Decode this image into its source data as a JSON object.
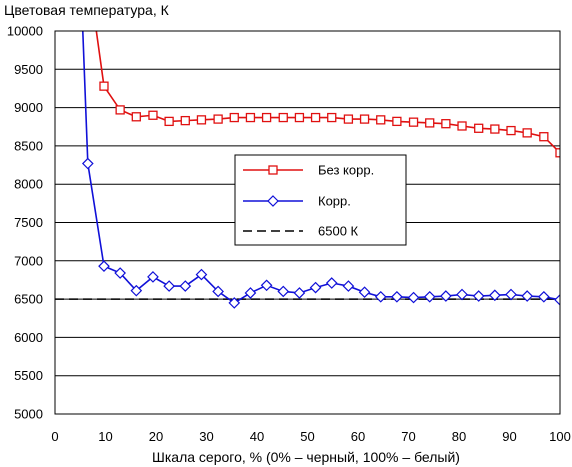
{
  "chart_data": {
    "type": "line",
    "title": "",
    "ylabel": "Цветовая температура, К",
    "xlabel": "Шкала серого, % (0% – черный, 100% – белый)",
    "xlim": [
      0,
      100
    ],
    "ylim": [
      5000,
      10000
    ],
    "xticks": [
      "0",
      "10",
      "20",
      "30",
      "40",
      "50",
      "60",
      "70",
      "80",
      "90",
      "100"
    ],
    "yticks": [
      "5000",
      "5500",
      "6000",
      "6500",
      "7000",
      "7500",
      "8000",
      "8500",
      "9000",
      "9500",
      "10000"
    ],
    "grid": "horizontal",
    "legend_position": "center-right",
    "series": [
      {
        "name": "Без корр.",
        "color": "#e01010",
        "marker": "square",
        "x": [
          6.5,
          9.7,
          12.9,
          16.1,
          19.4,
          22.6,
          25.8,
          29.0,
          32.3,
          35.5,
          38.7,
          41.9,
          45.2,
          48.4,
          51.6,
          54.8,
          58.1,
          61.3,
          64.5,
          67.7,
          71.0,
          74.2,
          77.4,
          80.6,
          83.9,
          87.1,
          90.3,
          93.5,
          96.8,
          100.0
        ],
        "y": [
          10800,
          9280,
          8970,
          8880,
          8900,
          8820,
          8830,
          8840,
          8850,
          8870,
          8870,
          8870,
          8870,
          8870,
          8870,
          8870,
          8850,
          8850,
          8840,
          8820,
          8810,
          8800,
          8790,
          8760,
          8730,
          8720,
          8700,
          8670,
          8620,
          8410
        ]
      },
      {
        "name": "Корр.",
        "color": "#1010d8",
        "marker": "diamond",
        "x": [
          3.2,
          6.5,
          9.7,
          12.9,
          16.1,
          19.4,
          22.6,
          25.8,
          29.0,
          32.3,
          35.5,
          38.7,
          41.9,
          45.2,
          48.4,
          51.6,
          54.8,
          58.1,
          61.3,
          64.5,
          67.7,
          71.0,
          74.2,
          77.4,
          80.6,
          83.9,
          87.1,
          90.3,
          93.5,
          96.8,
          100.0
        ],
        "y": [
          14000,
          8270,
          6930,
          6840,
          6610,
          6790,
          6670,
          6670,
          6820,
          6600,
          6450,
          6580,
          6680,
          6600,
          6580,
          6650,
          6710,
          6670,
          6590,
          6530,
          6530,
          6520,
          6530,
          6540,
          6560,
          6540,
          6550,
          6560,
          6540,
          6530,
          6490
        ]
      },
      {
        "name": "6500 К",
        "color": "#000000",
        "dash": "dashed",
        "x": [
          0,
          100
        ],
        "y": [
          6500,
          6500
        ]
      }
    ]
  }
}
